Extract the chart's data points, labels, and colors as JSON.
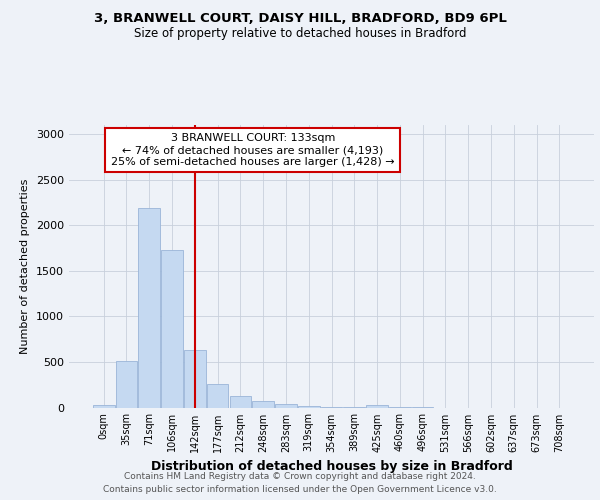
{
  "title_line1": "3, BRANWELL COURT, DAISY HILL, BRADFORD, BD9 6PL",
  "title_line2": "Size of property relative to detached houses in Bradford",
  "xlabel": "Distribution of detached houses by size in Bradford",
  "ylabel": "Number of detached properties",
  "categories": [
    "0sqm",
    "35sqm",
    "71sqm",
    "106sqm",
    "142sqm",
    "177sqm",
    "212sqm",
    "248sqm",
    "283sqm",
    "319sqm",
    "354sqm",
    "389sqm",
    "425sqm",
    "460sqm",
    "496sqm",
    "531sqm",
    "566sqm",
    "602sqm",
    "637sqm",
    "673sqm",
    "708sqm"
  ],
  "bar_values": [
    30,
    510,
    2190,
    1730,
    630,
    260,
    130,
    75,
    40,
    18,
    8,
    5,
    28,
    2,
    2,
    0,
    0,
    0,
    0,
    0,
    0
  ],
  "bar_color": "#c5d9f1",
  "bar_edge_color": "#9ab5d8",
  "grid_color": "#c8d0dc",
  "vline_color": "#cc0000",
  "annotation_text": "3 BRANWELL COURT: 133sqm\n← 74% of detached houses are smaller (4,193)\n25% of semi-detached houses are larger (1,428) →",
  "annotation_box_color": "#ffffff",
  "annotation_box_edge": "#cc0000",
  "ylim": [
    0,
    3100
  ],
  "yticks": [
    0,
    500,
    1000,
    1500,
    2000,
    2500,
    3000
  ],
  "footer_line1": "Contains HM Land Registry data © Crown copyright and database right 2024.",
  "footer_line2": "Contains public sector information licensed under the Open Government Licence v3.0.",
  "bg_color": "#eef2f8"
}
